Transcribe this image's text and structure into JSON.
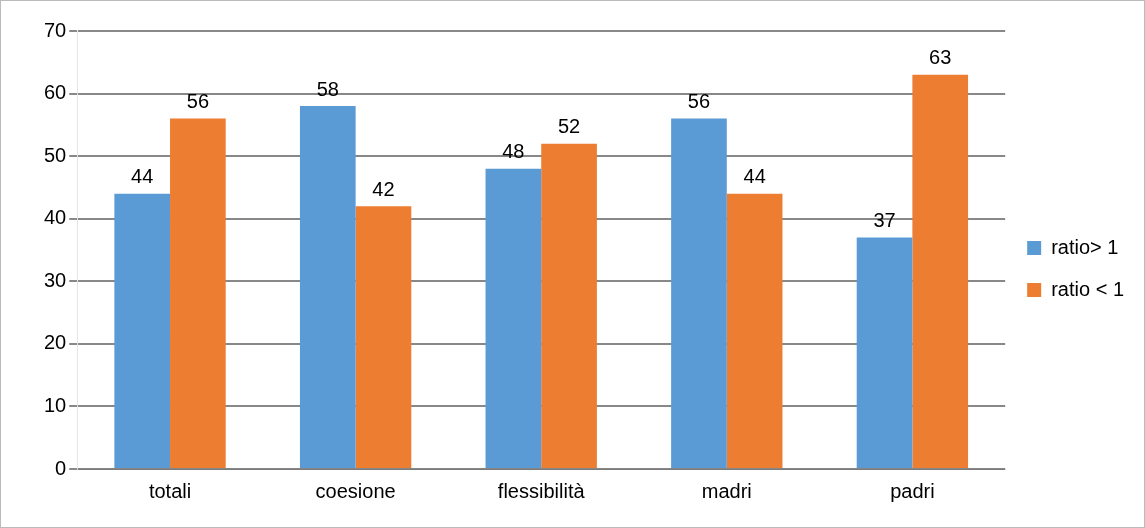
{
  "chart_data": {
    "type": "bar",
    "categories": [
      "totali",
      "coesione",
      "flessibilità",
      "madri",
      "padri"
    ],
    "series": [
      {
        "name": "ratio> 1",
        "color": "#5b9bd5",
        "values": [
          44,
          58,
          48,
          56,
          37
        ]
      },
      {
        "name": "ratio < 1",
        "color": "#ed7d31",
        "values": [
          56,
          42,
          52,
          44,
          63
        ]
      }
    ],
    "ylim": [
      0,
      70
    ],
    "yticks": [
      0,
      10,
      20,
      30,
      40,
      50,
      60,
      70
    ],
    "grid": "y",
    "legend": "right",
    "data_labels": true
  }
}
